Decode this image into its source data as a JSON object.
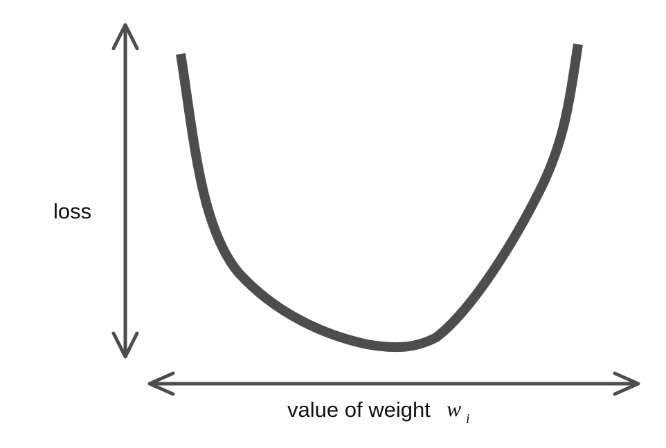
{
  "diagram": {
    "y_axis_label": "loss",
    "x_axis_label": "value of weight",
    "x_axis_symbol": "w",
    "x_axis_subscript": "i",
    "curve": "U-shaped loss curve with a single minimum",
    "colors": {
      "stroke": "#4d4d4d",
      "text": "#111111",
      "background": "#ffffff"
    }
  }
}
